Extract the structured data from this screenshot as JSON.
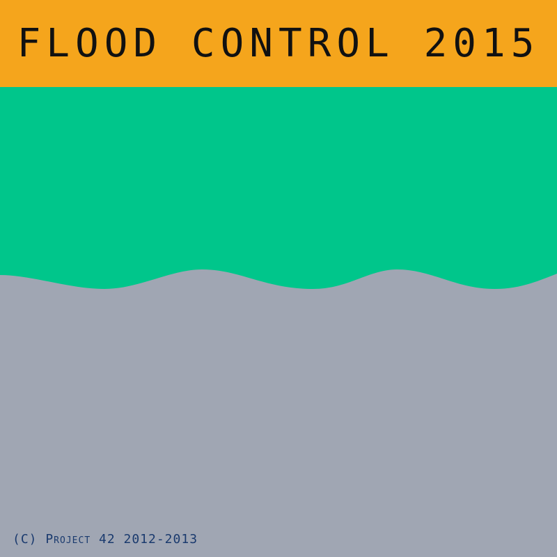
{
  "title": "FLOOD CONTROL 2015",
  "copyright": "(C) Project 42 2012-2013",
  "colors": {
    "title_bar": "#f5a51c",
    "water": "#00c68b",
    "ground": "#a0a6b3",
    "title_text": "#111111",
    "copyright_text": "#1a3a6e"
  }
}
